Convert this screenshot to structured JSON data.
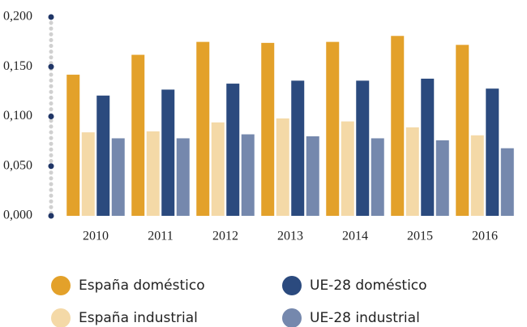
{
  "chart_data": {
    "type": "bar",
    "categories": [
      "2010",
      "2011",
      "2012",
      "2013",
      "2014",
      "2015",
      "2016"
    ],
    "series": [
      {
        "name": "España doméstico",
        "color": "#e3a12a",
        "values": [
          0.142,
          0.162,
          0.175,
          0.174,
          0.175,
          0.181,
          0.172
        ]
      },
      {
        "name": "España industrial",
        "color": "#f4d9a7",
        "values": [
          0.084,
          0.085,
          0.094,
          0.098,
          0.095,
          0.089,
          0.081
        ]
      },
      {
        "name": "UE-28 doméstico",
        "color": "#2b4a7e",
        "values": [
          0.121,
          0.127,
          0.133,
          0.136,
          0.136,
          0.138,
          0.128
        ]
      },
      {
        "name": "UE-28 industrial",
        "color": "#7588ad",
        "values": [
          0.078,
          0.078,
          0.082,
          0.08,
          0.078,
          0.076,
          0.068
        ]
      }
    ],
    "ylim": [
      0,
      0.2
    ],
    "yticks": [
      {
        "value": 0,
        "label": "0,000"
      },
      {
        "value": 0.05,
        "label": "0,050"
      },
      {
        "value": 0.1,
        "label": "0,100"
      },
      {
        "value": 0.15,
        "label": "0,150"
      },
      {
        "value": 0.2,
        "label": "0,200"
      }
    ],
    "legend": "bottom"
  }
}
